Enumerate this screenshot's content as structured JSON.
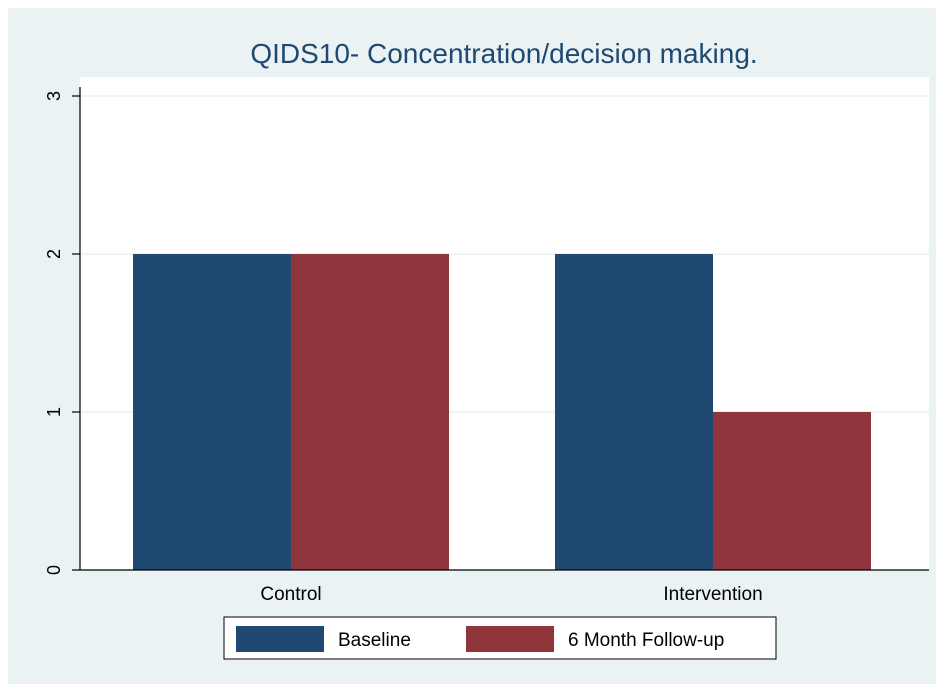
{
  "chart_data": {
    "type": "bar",
    "title": "QIDS10- Concentration/decision making.",
    "xlabel": "",
    "ylabel": "",
    "categories": [
      "Control",
      "Intervention"
    ],
    "series": [
      {
        "name": "Baseline",
        "values": [
          2,
          2
        ],
        "color": "#1f4971"
      },
      {
        "name": "6 Month Follow-up",
        "values": [
          2,
          1
        ],
        "color": "#90353b"
      }
    ],
    "ylim": [
      0,
      3
    ],
    "yticks": [
      "0",
      "1",
      "2",
      "3"
    ],
    "grid": true,
    "legend_position": "bottom",
    "colors": {
      "outer_background": "#eaf2f3",
      "plot_background": "#ffffff",
      "grid": "#eaf2f3",
      "axis": "#000000"
    }
  }
}
